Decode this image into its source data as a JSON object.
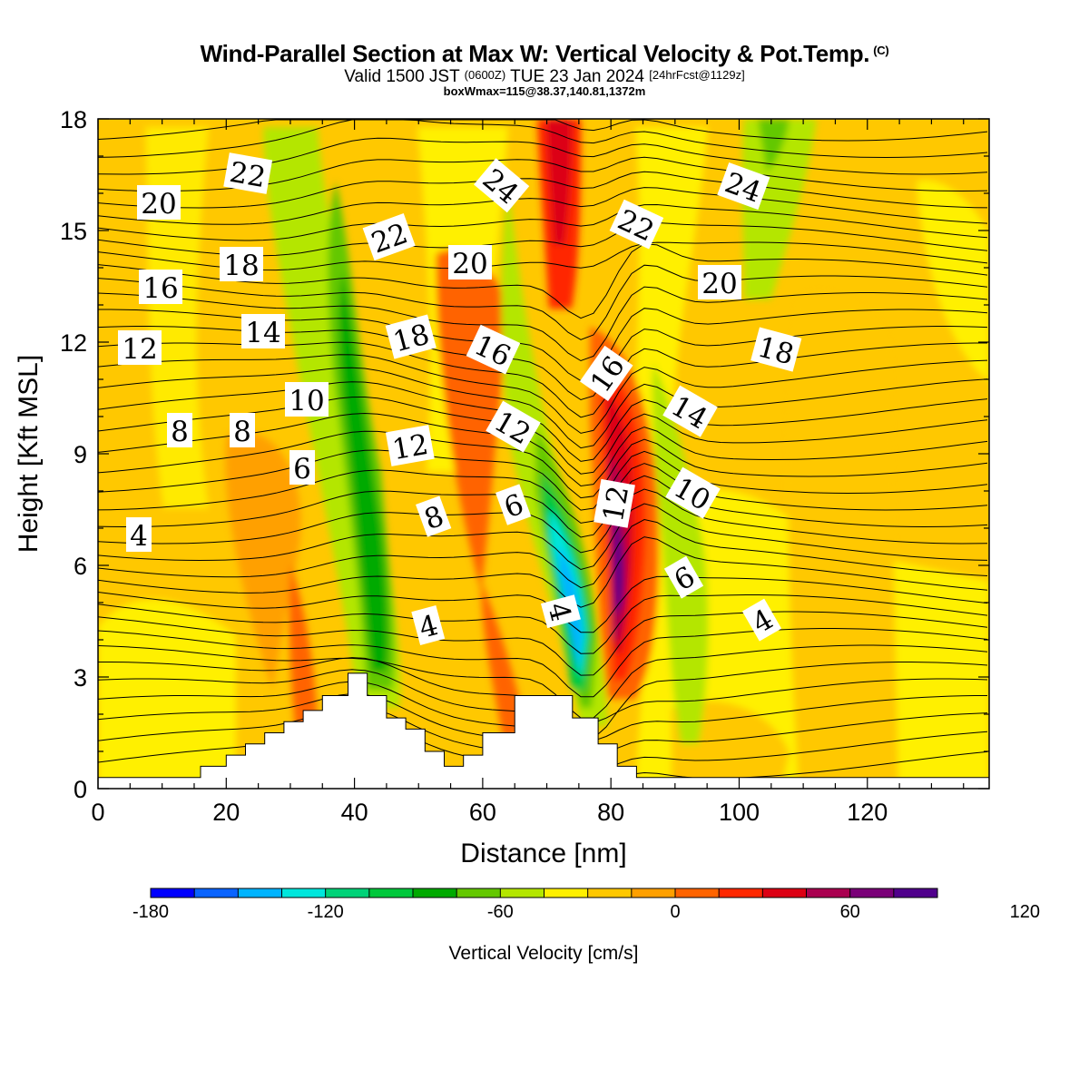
{
  "title": {
    "main": "Wind-Parallel Section at Max W: Vertical Velocity & Pot.Temp.",
    "copyright": "(C)",
    "valid_prefix": "Valid 1500 JST",
    "valid_utc": "(0600Z)",
    "valid_date": "TUE 23 Jan 2024",
    "forecast": "[24hrFcst@1129z]",
    "boxwmax": "boxWmax=115@38.37,140.81,1372m"
  },
  "chart_data": {
    "type": "heatmap",
    "xlabel": "Distance [nm]",
    "ylabel": "Height [Kft MSL]",
    "xlim": [
      0,
      139
    ],
    "ylim": [
      0,
      18
    ],
    "x_ticks": [
      0,
      20,
      40,
      60,
      80,
      100,
      120
    ],
    "y_ticks": [
      0,
      3,
      6,
      9,
      12,
      15,
      18
    ],
    "colorbar": {
      "title": "Vertical Velocity [cm/s]",
      "tick_labels": [
        -180,
        -120,
        -60,
        0,
        60,
        120
      ],
      "levels": [
        -180,
        -165,
        -150,
        -135,
        -120,
        -105,
        -90,
        -75,
        -60,
        -45,
        -30,
        -15,
        0,
        15,
        30,
        45,
        60,
        75,
        90,
        105,
        120,
        135
      ],
      "colors": [
        "#0000ff",
        "#0a64ff",
        "#00b4ff",
        "#00e6dc",
        "#00d278",
        "#00c83c",
        "#00aa00",
        "#64c800",
        "#b4e600",
        "#fff000",
        "#ffc800",
        "#ffa000",
        "#ff6400",
        "#ff2800",
        "#dc0014",
        "#aa0050",
        "#7a0078",
        "#50008c"
      ]
    },
    "velocity_features": [
      {
        "name": "downdraft-band",
        "x": [
          36,
          45
        ],
        "y": [
          2.5,
          16.5
        ],
        "w_cm_s": -60
      },
      {
        "name": "main-downdraft-core",
        "x": [
          70,
          76
        ],
        "y": [
          3.0,
          9.5
        ],
        "w_cm_s": -120
      },
      {
        "name": "main-updraft-core",
        "x": [
          79,
          84
        ],
        "y": [
          3.5,
          11
        ],
        "w_cm_s": 115
      },
      {
        "name": "upper-updraft",
        "x": [
          70,
          75
        ],
        "y": [
          12,
          18
        ],
        "w_cm_s": 90
      },
      {
        "name": "updraft-band",
        "x": [
          54,
          62
        ],
        "y": [
          3,
          14
        ],
        "w_cm_s": 40
      },
      {
        "name": "upper-downdraft",
        "x": [
          104,
          110
        ],
        "y": [
          15.5,
          18
        ],
        "w_cm_s": -45
      }
    ],
    "theta_contour_labels": [
      "4",
      "4",
      "4",
      "4",
      "6",
      "6",
      "6",
      "8",
      "8",
      "8",
      "10",
      "10",
      "12",
      "12",
      "12",
      "12",
      "14",
      "14",
      "16",
      "16",
      "16",
      "18",
      "18",
      "18",
      "20",
      "20",
      "20",
      "22",
      "22",
      "22",
      "24",
      "24"
    ],
    "terrain": {
      "x": [
        0,
        16,
        16,
        20,
        20,
        23,
        23,
        26,
        26,
        29,
        29,
        32,
        32,
        35,
        35,
        39,
        39,
        42,
        42,
        45,
        45,
        48,
        48,
        51,
        51,
        54,
        54,
        57,
        57,
        60,
        60,
        63,
        63,
        65,
        65,
        67,
        67,
        68,
        68,
        72,
        72,
        74,
        74,
        78,
        78,
        81,
        81,
        84,
        84,
        139
      ],
      "y": [
        0.3,
        0.3,
        0.6,
        0.6,
        0.9,
        0.9,
        1.2,
        1.2,
        1.5,
        1.5,
        1.8,
        1.8,
        2.1,
        2.1,
        2.5,
        2.5,
        3.1,
        3.1,
        2.5,
        2.5,
        1.9,
        1.9,
        1.6,
        1.6,
        1.0,
        1.0,
        0.6,
        0.6,
        0.9,
        0.9,
        1.5,
        1.5,
        1.5,
        1.5,
        2.5,
        2.5,
        2.5,
        2.5,
        2.5,
        2.5,
        2.5,
        2.5,
        1.9,
        1.9,
        1.2,
        1.2,
        0.6,
        0.6,
        0.3,
        0.3
      ]
    }
  }
}
